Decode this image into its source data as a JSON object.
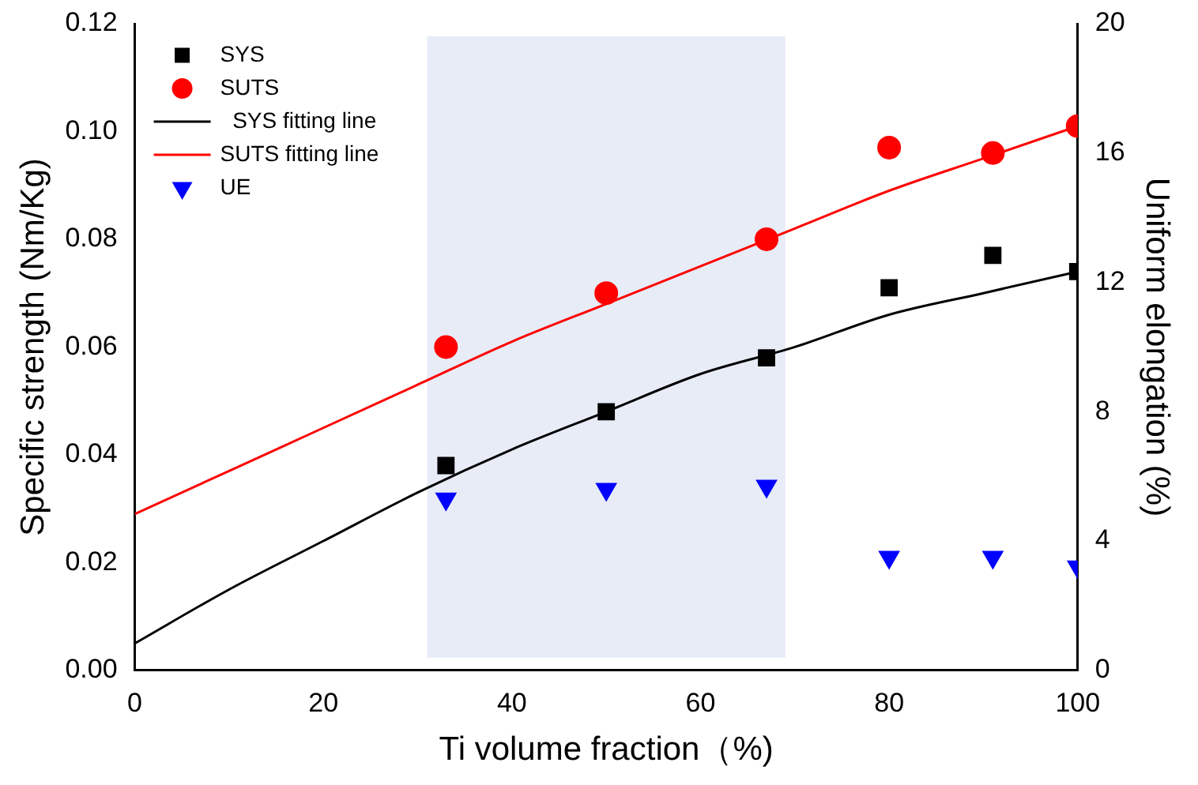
{
  "chart_data": {
    "type": "scatter",
    "xlabel": "Ti volume fraction（%)",
    "ylabel": "Specific strength (Nm/Kg)",
    "y2label": "Uniform elongation (%)",
    "xlim": [
      0,
      100
    ],
    "xticks": [
      0,
      20,
      40,
      60,
      80,
      100
    ],
    "ylim": [
      0,
      0.12
    ],
    "yticks": [
      {
        "value": 0,
        "label": "0.00"
      },
      {
        "value": 0.02,
        "label": "0.02"
      },
      {
        "value": 0.04,
        "label": "0.04"
      },
      {
        "value": 0.06,
        "label": "0.06"
      },
      {
        "value": 0.08,
        "label": "0.08"
      },
      {
        "value": 0.1,
        "label": "0.10"
      },
      {
        "value": 0.12,
        "label": "0.12"
      }
    ],
    "y2lim": [
      0,
      20
    ],
    "y2ticks": [
      0,
      4,
      8,
      12,
      16,
      20
    ],
    "grid": false,
    "legend": "top left",
    "bands": [
      {
        "axis": "x",
        "from": 31,
        "to": 69,
        "color": "#dde4f4"
      }
    ],
    "series": [
      {
        "name": "SYS",
        "type": "scatter",
        "marker": "square",
        "color": "#000000",
        "x": [
          33,
          50,
          67,
          80,
          91,
          100
        ],
        "values": [
          0.038,
          0.048,
          0.058,
          0.071,
          0.077,
          0.074
        ]
      },
      {
        "name": "SUTS",
        "type": "scatter",
        "marker": "circle",
        "color": "#ff0000",
        "x": [
          33,
          50,
          67,
          80,
          91,
          100
        ],
        "values": [
          0.06,
          0.07,
          0.08,
          0.097,
          0.096,
          0.101
        ]
      },
      {
        "name": "  SYS fitting line",
        "type": "line",
        "marker": "none",
        "color": "#000000",
        "x": [
          0,
          10,
          20,
          30,
          40,
          50,
          60,
          70,
          80,
          90,
          100
        ],
        "values": [
          0.005,
          0.015,
          0.024,
          0.033,
          0.041,
          0.048,
          0.055,
          0.06,
          0.066,
          0.07,
          0.074
        ]
      },
      {
        "name": "SUTS fitting line",
        "type": "line",
        "marker": "none",
        "color": "#ff0000",
        "x": [
          0,
          10,
          20,
          30,
          40,
          50,
          60,
          70,
          80,
          90,
          100
        ],
        "values": [
          0.029,
          0.037,
          0.045,
          0.053,
          0.061,
          0.068,
          0.075,
          0.082,
          0.089,
          0.095,
          0.101
        ]
      },
      {
        "name": "UE",
        "type": "scatter",
        "marker": "triangle",
        "axis": "y2",
        "color": "#0000ff",
        "x": [
          33,
          50,
          67,
          80,
          91,
          100
        ],
        "values": [
          5.3,
          5.6,
          5.7,
          3.5,
          3.5,
          3.2
        ]
      }
    ]
  }
}
